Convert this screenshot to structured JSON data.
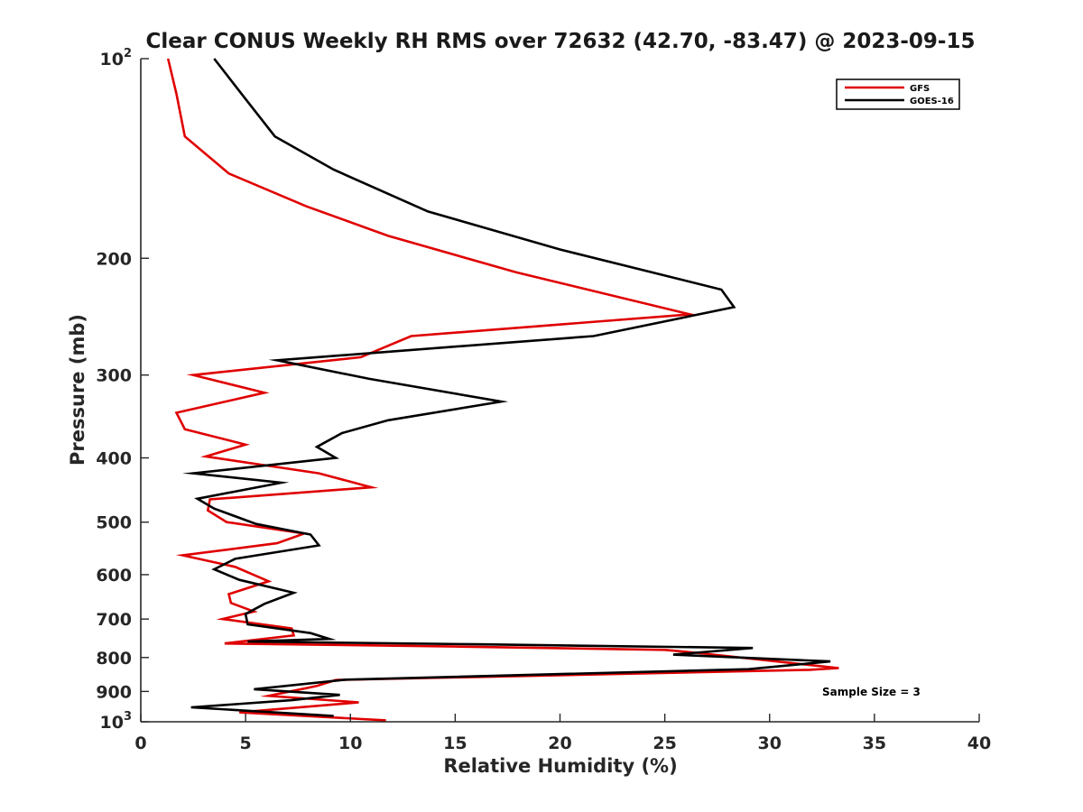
{
  "chart_data": {
    "type": "line",
    "title": "Clear CONUS Weekly RH RMS over 72632 (42.70, -83.47) @ 2023-09-15",
    "xlabel": "Relative Humidity (%)",
    "ylabel": "Pressure (mb)",
    "xlim": [
      0,
      40
    ],
    "ylim": [
      100,
      1000
    ],
    "yscale": "log",
    "y_reversed": true,
    "xticks": [
      "0",
      "5",
      "10",
      "15",
      "20",
      "25",
      "30",
      "35",
      "40"
    ],
    "yticks": [
      {
        "value": 100,
        "base": "10",
        "exp": "2"
      },
      {
        "value": 200,
        "label": "200"
      },
      {
        "value": 300,
        "label": "300"
      },
      {
        "value": 400,
        "label": "400"
      },
      {
        "value": 500,
        "label": "500"
      },
      {
        "value": 600,
        "label": "600"
      },
      {
        "value": 700,
        "label": "700"
      },
      {
        "value": 800,
        "label": "800"
      },
      {
        "value": 900,
        "label": "900"
      },
      {
        "value": 1000,
        "base": "10",
        "exp": "3"
      }
    ],
    "grid": false,
    "legend_position": "top-right",
    "annotation": "Sample Size = 3",
    "series": [
      {
        "name": "GFS",
        "color": "#e00000",
        "x": [
          1.3,
          1.7,
          2.1,
          4.2,
          7.9,
          11.8,
          17.9,
          26.2,
          12.9,
          10.5,
          2.5,
          5.9,
          1.7,
          2.1,
          5.0,
          3.1,
          8.5,
          11.0,
          3.3,
          3.2,
          4.1,
          7.8,
          6.5,
          2.0,
          4.5,
          6.1,
          4.2,
          4.3,
          5.4,
          3.9,
          7.2,
          7.3,
          4.0,
          15.0,
          25.0,
          26.5,
          33.3,
          31.9,
          9.3,
          8.4,
          6.1,
          10.4,
          4.7,
          11.7
        ],
        "y": [
          100,
          113,
          131,
          149,
          167,
          185,
          210,
          243,
          262,
          282,
          300,
          319,
          342,
          362,
          382,
          398,
          422,
          443,
          462,
          480,
          500,
          520,
          538,
          561,
          584,
          614,
          642,
          662,
          682,
          700,
          723,
          741,
          762,
          770,
          779,
          787,
          830,
          835,
          865,
          883,
          914,
          935,
          968,
          995
        ]
      },
      {
        "name": "GOES-16",
        "color": "#000000",
        "x": [
          3.5,
          4.9,
          6.4,
          9.2,
          13.7,
          20.0,
          27.7,
          28.3,
          21.6,
          6.5,
          10.9,
          17.2,
          11.8,
          9.6,
          8.4,
          9.3,
          2.5,
          6.7,
          2.7,
          3.5,
          5.5,
          8.1,
          8.5,
          4.5,
          3.5,
          4.7,
          7.3,
          5.9,
          5.0,
          5.1,
          8.1,
          9.0,
          5.1,
          16.0,
          29.2,
          25.4,
          32.9,
          29.0,
          9.8,
          5.4,
          9.5,
          7.2,
          2.4,
          9.2
        ],
        "y": [
          100,
          114,
          131,
          147,
          170,
          194,
          223,
          237,
          262,
          285,
          304,
          329,
          351,
          367,
          385,
          400,
          422,
          436,
          461,
          477,
          503,
          522,
          542,
          568,
          589,
          611,
          639,
          664,
          688,
          713,
          735,
          750,
          757,
          764,
          774,
          792,
          811,
          833,
          864,
          893,
          911,
          928,
          951,
          980
        ]
      }
    ]
  }
}
